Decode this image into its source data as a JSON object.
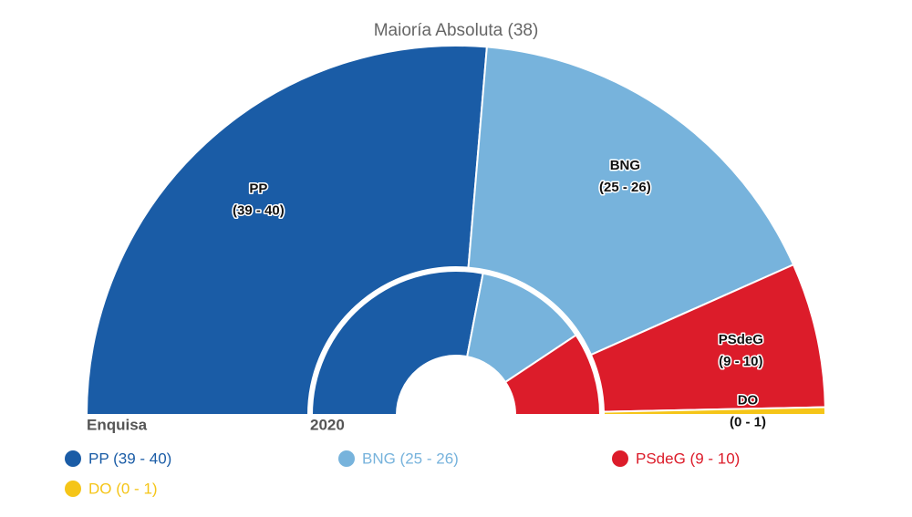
{
  "chart_data": {
    "type": "parliament",
    "title": "Maioría Absoluta (38)",
    "ring_labels": [
      "Enquisa",
      "2020"
    ],
    "series": [
      {
        "name": "PP",
        "color": "#1a5ca6",
        "range_label": "(39 - 40)",
        "legend_label": "PP (39 - 40)",
        "low": 39,
        "high": 40,
        "previous": 42
      },
      {
        "name": "BNG",
        "color": "#77b3dc",
        "range_label": "(25 - 26)",
        "legend_label": "BNG (25 - 26)",
        "low": 25,
        "high": 26,
        "previous": 19
      },
      {
        "name": "PSdeG",
        "color": "#dc1c2a",
        "range_label": "(9 - 10)",
        "legend_label": "PSdeG (9 - 10)",
        "low": 9,
        "high": 10,
        "previous": 14
      },
      {
        "name": "DO",
        "color": "#f5c518",
        "range_label": "(0 - 1)",
        "legend_label": "DO (0 - 1)",
        "low": 0,
        "high": 1,
        "previous": 0
      }
    ]
  }
}
